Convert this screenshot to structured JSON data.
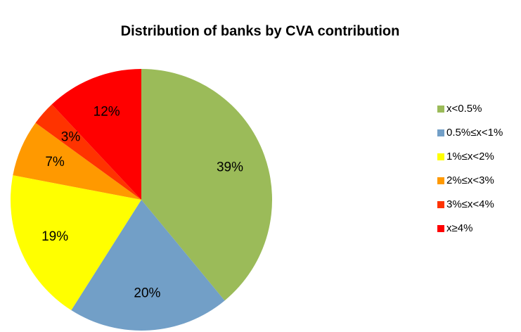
{
  "chart_data": {
    "type": "pie",
    "title": "Distribution of banks by CVA contribution",
    "categories": [
      "x<0.5%",
      "0.5%≤x<1%",
      "1%≤x<2%",
      "2%≤x<3%",
      "3%≤x<4%",
      "x≥4%"
    ],
    "values": [
      39,
      20,
      19,
      7,
      3,
      12
    ],
    "value_labels": [
      "39%",
      "20%",
      "19%",
      "7%",
      "3%",
      "12%"
    ],
    "colors": [
      "#9bbb59",
      "#729fc7",
      "#ffff00",
      "#ff9900",
      "#ff3300",
      "#ff0000"
    ],
    "legend": "right"
  }
}
